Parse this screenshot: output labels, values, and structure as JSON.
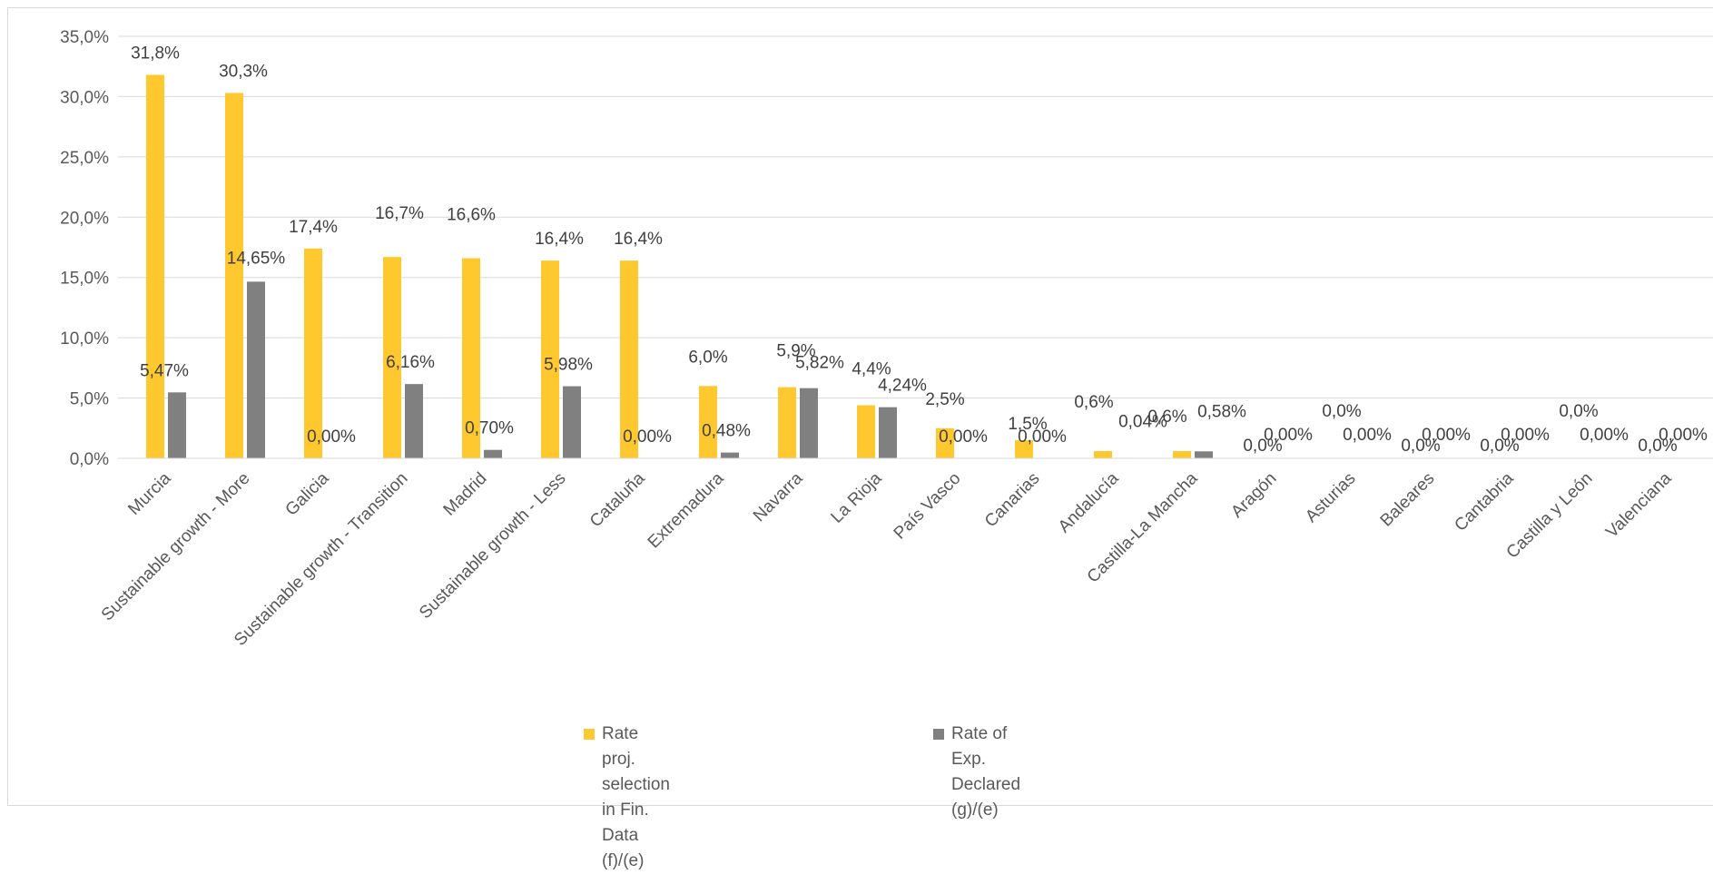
{
  "chart_data": {
    "type": "bar",
    "title": "",
    "xlabel": "",
    "ylabel": "",
    "ylim": [
      0,
      35
    ],
    "y_ticks": [
      "0,0%",
      "5,0%",
      "10,0%",
      "15,0%",
      "20,0%",
      "25,0%",
      "30,0%",
      "35,0%"
    ],
    "grid": true,
    "legend_position": "bottom",
    "categories": [
      "Murcia",
      "Sustainable growth - More",
      "Galicia",
      "Sustainable growth - Transition",
      "Madrid",
      "Sustainable growth - Less",
      "Cataluña",
      "Extremadura",
      "Navarra",
      "La Rioja",
      "País Vasco",
      "Canarias",
      "Andalucía",
      "Castilla-La Mancha",
      "Aragón",
      "Asturias",
      "Baleares",
      "Cantabria",
      "Castilla y León",
      "Valenciana"
    ],
    "series": [
      {
        "name": "Rate proj. selection in Fin. Data (f)/(e)",
        "legend_lines": [
          "Rate proj. selection in Fin. Data",
          "(f)/(e)"
        ],
        "color": "#FFC82E",
        "values": [
          31.8,
          30.3,
          17.4,
          16.7,
          16.6,
          16.4,
          16.4,
          6.0,
          5.9,
          4.4,
          2.5,
          1.5,
          0.6,
          0.6,
          0,
          0,
          0,
          0,
          0,
          0
        ],
        "labels": [
          "31,8%",
          "30,3%",
          "17,4%",
          "16,7%",
          "16,6%",
          "16,4%",
          "16,4%",
          "6,0%",
          "5,9%",
          "4,4%",
          "2,5%",
          "1,5%",
          "0,6%",
          "0,6%",
          "0,0%",
          "0,0%",
          "0,0%",
          "0,0%",
          "0,0%",
          "0,0%"
        ]
      },
      {
        "name": "Rate of Exp. Declared (g)/(e)",
        "legend_lines": [
          "Rate of Exp. Declared",
          "(g)/(e)"
        ],
        "color": "#808080",
        "values": [
          5.47,
          14.65,
          0.0,
          6.16,
          0.7,
          5.98,
          0.0,
          0.48,
          5.82,
          4.24,
          0.0,
          0.0,
          0.04,
          0.58,
          0.0,
          0.0,
          0.0,
          0.0,
          0.0,
          0.0
        ],
        "labels": [
          "5,47%",
          "14,65%",
          "0,00%",
          "6,16%",
          "0,70%",
          "5,98%",
          "0,00%",
          "0,48%",
          "5,82%",
          "4,24%",
          "0,00%",
          "0,00%",
          "0,04%",
          "0,58%",
          "0,00%",
          "0,00%",
          "0,00%",
          "0,00%",
          "0,00%",
          "0,00%"
        ]
      }
    ]
  }
}
